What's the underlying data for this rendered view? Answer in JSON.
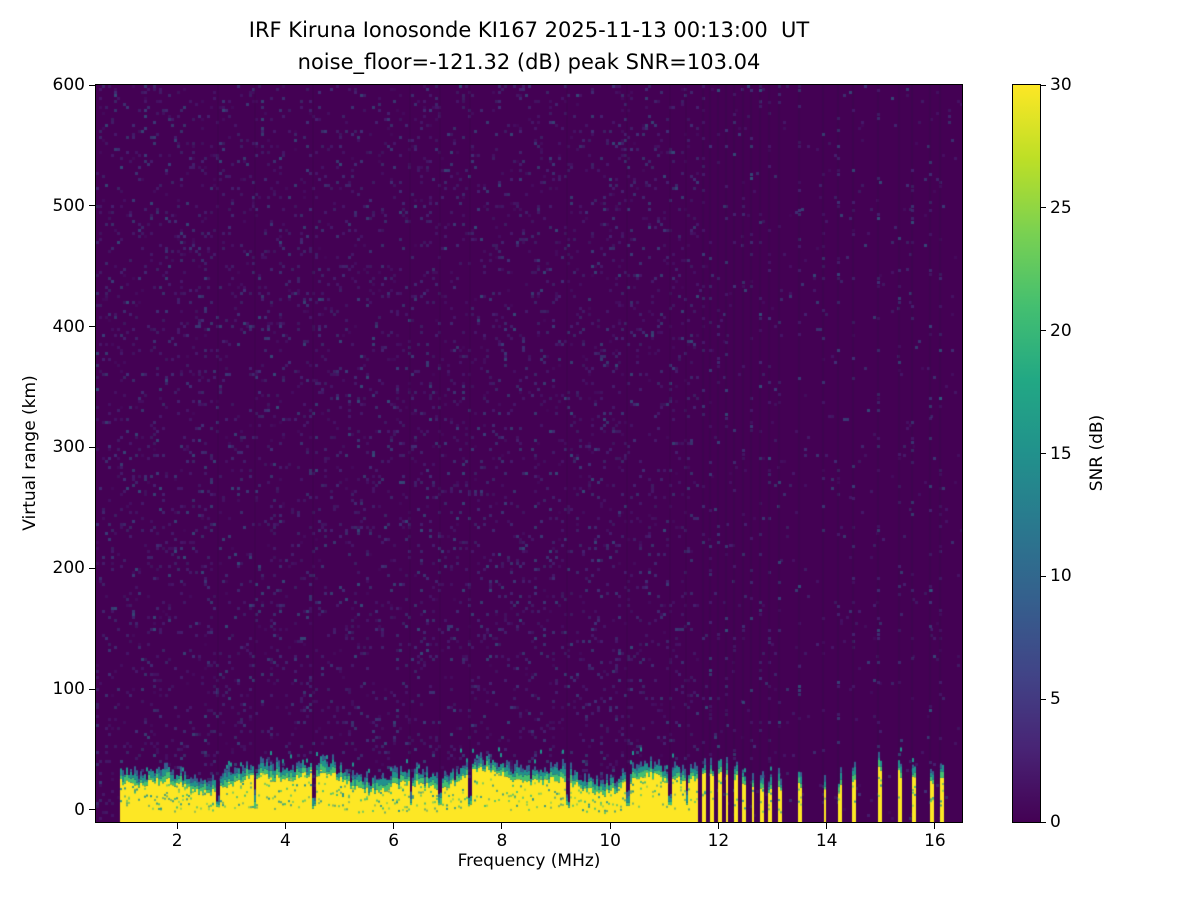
{
  "chart_data": {
    "type": "heatmap",
    "title": "IRF Kiruna Ionosonde KI167 2025-11-13 00:13:00  UT",
    "subtitle": "noise_floor=-121.32 (dB) peak SNR=103.04",
    "station": "IRF Kiruna Ionosonde KI167",
    "timestamp_ut": "2025-11-13 00:13:00 UT",
    "noise_floor_db": -121.32,
    "peak_snr_db": 103.04,
    "xlabel": "Frequency (MHz)",
    "ylabel": "Virtual range (km)",
    "xlim": [
      0.5,
      16.5
    ],
    "ylim": [
      -10,
      600
    ],
    "xticks": [
      2,
      4,
      6,
      8,
      10,
      12,
      14,
      16
    ],
    "yticks": [
      0,
      100,
      200,
      300,
      400,
      500,
      600
    ],
    "grid": false,
    "colorbar": {
      "label": "SNR (dB)",
      "min": 0,
      "max": 30,
      "ticks": [
        0,
        5,
        10,
        15,
        20,
        25,
        30
      ],
      "colormap": "viridis",
      "stops": [
        "#440154",
        "#482475",
        "#414487",
        "#355f8d",
        "#2a788e",
        "#21918c",
        "#22a884",
        "#44bf70",
        "#7ad151",
        "#bddf26",
        "#fde725"
      ]
    },
    "colors": {
      "background": "#440154",
      "background_dark": "#38094a",
      "noise_speckles": [
        "#453781",
        "#3d4e8a",
        "#33638d",
        "#2a788e",
        "#482878"
      ],
      "band_core": "#fde725",
      "band_edge_green": "#44bf70",
      "band_edge_teal": "#21918c",
      "band_edge_blue": "#355f8d"
    },
    "echo_layer": {
      "description": "Strong near-range clutter band saturated at 30 dB SNR, from bottom of plot up to ~20-40 km virtual range, continuous from ~1 MHz to ~11.6 MHz, then discrete frequency stripes up to ~16.2 MHz; dark background shows sparse low-SNR speckle noise",
      "freq_start_mhz": 0.95,
      "freq_end_continuous_mhz": 11.62,
      "band_top_km_range": [
        15,
        40
      ],
      "band_bottom_km": -10,
      "gap_freqs_mhz": [
        2.75,
        3.42,
        4.5,
        6.3,
        6.85,
        7.4,
        9.2,
        10.3,
        11.1,
        11.4
      ],
      "gap_width_mhz": 0.07,
      "stripe_freqs_mhz": [
        11.72,
        11.86,
        12.0,
        12.14,
        12.3,
        12.46,
        12.62,
        12.78,
        12.95,
        13.12,
        13.5,
        13.95,
        14.22,
        14.5,
        14.95,
        15.35,
        15.58,
        15.92,
        16.1
      ],
      "stripe_width_mhz": 0.07
    }
  }
}
